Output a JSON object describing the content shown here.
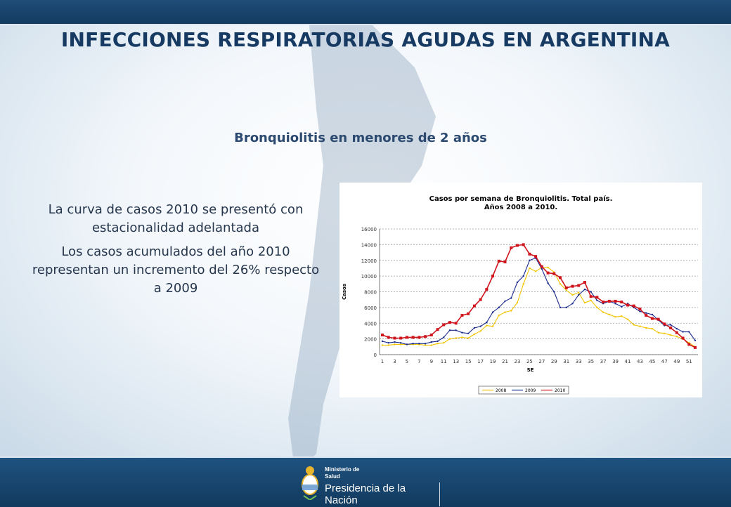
{
  "slide": {
    "title": "INFECCIONES RESPIRATORIAS AGUDAS EN ARGENTINA",
    "subtitle": "Bronquiolitis en menores de 2 años",
    "bullets": [
      "La curva de casos 2010 se  presentó con estacionalidad adelantada",
      "Los casos acumulados  del año 2010 representan un incremento del 26% respecto a 2009"
    ]
  },
  "footer": {
    "ministry_line1": "Ministerio de",
    "ministry_line2": "Salud",
    "presidency": "Presidencia de la Nación"
  },
  "colors": {
    "header_bar": "#173a63",
    "title_text": "#173a63",
    "series_2008": "#f2c400",
    "series_2009": "#1a2a8c",
    "series_2010": "#d0141c"
  },
  "chart_data": {
    "type": "line",
    "title_line1": "Casos por semana de Bronquiolitis. Total país.",
    "title_line2": "Años 2008 a 2010.",
    "xlabel": "SE",
    "ylabel": "Casos",
    "ylim": [
      0,
      16000
    ],
    "yticks": [
      "0",
      "2000",
      "4000",
      "6000",
      "8000",
      "10000",
      "12000",
      "14000",
      "16000"
    ],
    "xtick_labels": [
      "1",
      "3",
      "5",
      "7",
      "9",
      "11",
      "13",
      "15",
      "17",
      "19",
      "21",
      "23",
      "25",
      "27",
      "29",
      "31",
      "33",
      "35",
      "37",
      "39",
      "41",
      "43",
      "45",
      "47",
      "49",
      "51"
    ],
    "grid": true,
    "legend_position": "bottom",
    "x": [
      1,
      2,
      3,
      4,
      5,
      6,
      7,
      8,
      9,
      10,
      11,
      12,
      13,
      14,
      15,
      16,
      17,
      18,
      19,
      20,
      21,
      22,
      23,
      24,
      25,
      26,
      27,
      28,
      29,
      30,
      31,
      32,
      33,
      34,
      35,
      36,
      37,
      38,
      39,
      40,
      41,
      42,
      43,
      44,
      45,
      46,
      47,
      48,
      49,
      50,
      51,
      52
    ],
    "series": [
      {
        "name": "2008",
        "values": [
          1200,
          1200,
          1300,
          1300,
          1300,
          1300,
          1300,
          1200,
          1200,
          1400,
          1500,
          2000,
          2100,
          2200,
          2100,
          2600,
          3000,
          3700,
          3600,
          5000,
          5400,
          5600,
          6600,
          9000,
          11000,
          10600,
          11100,
          11100,
          10500,
          9000,
          8200,
          7600,
          7900,
          6600,
          6900,
          6000,
          5400,
          5100,
          4800,
          4900,
          4500,
          3800,
          3600,
          3400,
          3300,
          2800,
          2700,
          2500,
          2300,
          2000,
          1500,
          1000
        ]
      },
      {
        "name": "2009",
        "values": [
          1700,
          1500,
          1600,
          1500,
          1300,
          1400,
          1400,
          1400,
          1600,
          1700,
          2200,
          3100,
          3100,
          2800,
          2700,
          3400,
          3600,
          4100,
          5400,
          6000,
          6800,
          7200,
          9200,
          10000,
          12000,
          12300,
          10900,
          9100,
          8000,
          6000,
          6000,
          6500,
          7600,
          8300,
          8000,
          6900,
          6500,
          6800,
          6500,
          6100,
          6500,
          6000,
          5500,
          5300,
          5100,
          4400,
          3700,
          3800,
          3300,
          2900,
          2900,
          1800
        ]
      },
      {
        "name": "2010",
        "values": [
          2500,
          2200,
          2100,
          2100,
          2200,
          2200,
          2200,
          2300,
          2500,
          3200,
          3800,
          4100,
          4000,
          5000,
          5200,
          6200,
          7000,
          8300,
          10000,
          11900,
          11800,
          13600,
          13900,
          14000,
          12800,
          12500,
          11200,
          10400,
          10300,
          9800,
          8500,
          8700,
          8800,
          9200,
          7400,
          7300,
          6700,
          6800,
          6800,
          6700,
          6300,
          6200,
          5800,
          5000,
          4600,
          4500,
          3900,
          3400,
          2800,
          2100,
          1300,
          900
        ]
      }
    ]
  }
}
